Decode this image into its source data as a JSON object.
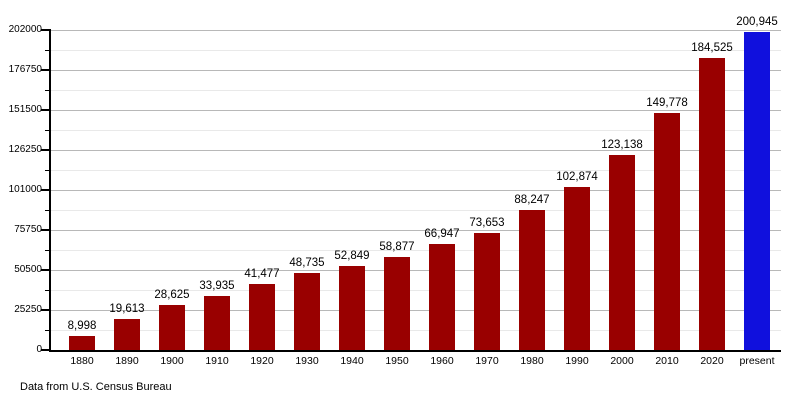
{
  "footer": {
    "note": "Data from U.S. Census Bureau"
  },
  "chart_data": {
    "type": "bar",
    "title": "",
    "xlabel": "",
    "ylabel": "",
    "categories": [
      "1880",
      "1890",
      "1900",
      "1910",
      "1920",
      "1930",
      "1940",
      "1950",
      "1960",
      "1970",
      "1980",
      "1990",
      "2000",
      "2010",
      "2020",
      "present"
    ],
    "values": [
      8998,
      19613,
      28625,
      33935,
      41477,
      48735,
      52849,
      58877,
      66947,
      73653,
      88247,
      102874,
      123138,
      149778,
      184525,
      200945
    ],
    "value_labels": [
      "8,998",
      "19,613",
      "28,625",
      "33,935",
      "41,477",
      "48,735",
      "52,849",
      "58,877",
      "66,947",
      "73,653",
      "88,247",
      "102,874",
      "123,138",
      "149,778",
      "184,525",
      "200,945"
    ],
    "ylim": [
      0,
      202000
    ],
    "yticks": [
      0,
      25250,
      50500,
      75750,
      101000,
      126250,
      151500,
      176750,
      202000
    ],
    "ytick_labels": [
      "0",
      "25250",
      "50500",
      "75750",
      "101000",
      "126250",
      "151500",
      "176750",
      "202000"
    ],
    "minor_ytick_interval": 12625,
    "grid": "on",
    "legend": "none",
    "bar_color": "#990000",
    "highlight_category": "present",
    "highlight_index": 15,
    "highlight_color": "#1010dd",
    "axis_color": "#000000"
  }
}
